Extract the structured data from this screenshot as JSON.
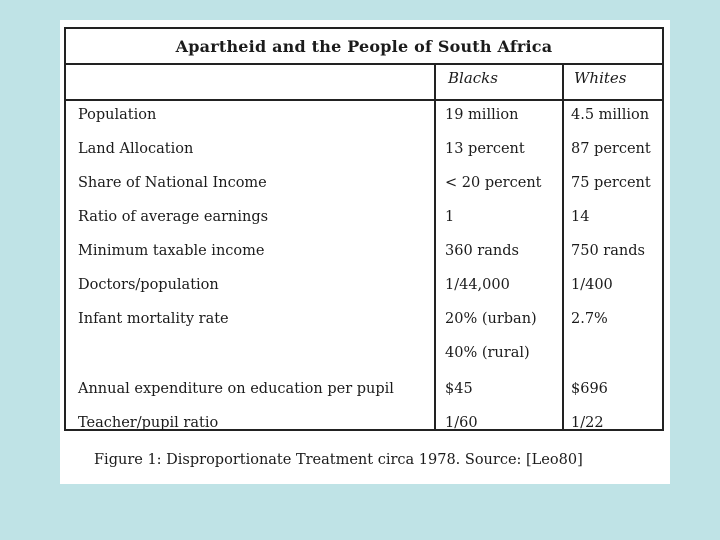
{
  "table": {
    "title": "Apartheid and the People of South Africa",
    "headers": {
      "blacks": "Blacks",
      "whites": "Whites"
    },
    "rows": [
      {
        "label": "Population",
        "blacks": "19 million",
        "whites": "4.5 million"
      },
      {
        "label": "Land Allocation",
        "blacks": "13 percent",
        "whites": "87 percent"
      },
      {
        "label": "Share of National Income",
        "blacks": "< 20 percent",
        "whites": "75 percent"
      },
      {
        "label": "Ratio of average earnings",
        "blacks": "1",
        "whites": "14"
      },
      {
        "label": "Minimum taxable income",
        "blacks": "360 rands",
        "whites": "750 rands"
      },
      {
        "label": "Doctors/population",
        "blacks": "1/44,000",
        "whites": "1/400"
      },
      {
        "label": "Infant mortality rate",
        "blacks": "20% (urban)",
        "whites": "2.7%"
      },
      {
        "label": "",
        "blacks": "40% (rural)",
        "whites": ""
      },
      {
        "label": "Annual expenditure on education per pupil",
        "blacks": "$45",
        "whites": "$696"
      },
      {
        "label": "Teacher/pupil ratio",
        "blacks": "1/60",
        "whites": "1/22"
      }
    ]
  },
  "caption": "Figure 1: Disproportionate Treatment circa 1978. Source: [Leo80]"
}
